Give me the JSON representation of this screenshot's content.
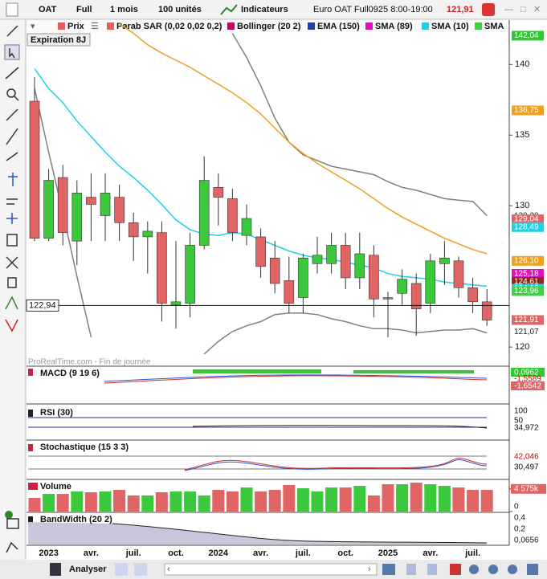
{
  "toolbar": {
    "symbol": "OAT",
    "mode": "Full",
    "period": "1 mois",
    "units": "100 unités",
    "indicators": "Indicateurs",
    "instrument": "Euro OAT Full0925 8:00-19:00",
    "last": "121,91"
  },
  "legend": [
    {
      "text": "Prix",
      "color": "#e06060"
    },
    {
      "text": "Parab SAR (0,02 0,02 0,2)",
      "color": "#e06060"
    },
    {
      "text": "Bollinger (20 2)",
      "color": "#cc0066"
    },
    {
      "text": "EMA (150)",
      "color": "#1f3fa6"
    },
    {
      "text": "SMA (89)",
      "color": "#e010c0"
    },
    {
      "text": "SMA (10)",
      "color": "#20d0e0"
    },
    {
      "text": "SMA",
      "color": "#40d040"
    }
  ],
  "expiration": "Expiration 8J",
  "watermark": "ProRealTime.com - Fin de journée",
  "chart_data": {
    "type": "candlestick",
    "categories": [
      null,
      "2023",
      null,
      null,
      "avr.",
      null,
      null,
      "juil.",
      null,
      null,
      "oct.",
      null,
      null,
      "2024",
      null,
      null,
      "avr.",
      null,
      null,
      "juil.",
      null,
      null,
      "oct.",
      null,
      null,
      "2025",
      null,
      null,
      "avr.",
      null,
      null,
      "juil.",
      null
    ],
    "open": [
      137.4,
      127.7,
      132.0,
      127.5,
      130.6,
      129.3,
      130.6,
      128.8,
      127.8,
      128.1,
      123.0,
      123.1,
      127.2,
      131.3,
      130.5,
      127.9,
      127.8,
      126.3,
      124.7,
      123.5,
      125.9,
      125.9,
      127.2,
      124.9,
      126.5,
      123.5,
      123.8,
      124.5,
      123.1,
      125.9,
      126.1,
      124.2,
      123.2
    ],
    "high": [
      139.1,
      132.6,
      132.9,
      131.8,
      132.3,
      132.3,
      131.5,
      129.5,
      128.9,
      128.9,
      127.5,
      128.1,
      133.5,
      132.3,
      131.2,
      130.1,
      128.4,
      127.5,
      126.4,
      126.6,
      127.8,
      128.1,
      128.1,
      128.1,
      127.2,
      123.9,
      125.5,
      125.2,
      126.6,
      127.5,
      126.4,
      124.9,
      124.1
    ],
    "low": [
      127.5,
      127.5,
      127.2,
      125.8,
      127.5,
      127.5,
      127.5,
      126.1,
      125.2,
      121.8,
      121.3,
      122.1,
      126.9,
      128.6,
      127.5,
      127.2,
      124.9,
      123.8,
      122.4,
      122.4,
      125.2,
      125.2,
      124.1,
      124.1,
      122.1,
      120.7,
      123.0,
      120.8,
      122.4,
      124.4,
      123.5,
      122.4,
      121.5
    ],
    "close": [
      127.7,
      131.8,
      128.1,
      130.9,
      130.1,
      130.9,
      128.8,
      127.8,
      128.2,
      123.1,
      123.2,
      127.2,
      131.8,
      130.6,
      128.1,
      129.1,
      125.7,
      124.5,
      123.1,
      126.3,
      126.5,
      127.2,
      124.9,
      126.6,
      123.4,
      123.4,
      124.8,
      122.7,
      126.1,
      126.3,
      124.2,
      123.2,
      121.91
    ],
    "up_color": "#3cc83c",
    "down_color": "#e06464",
    "ylim": [
      118.7,
      143.2
    ],
    "yticks": [
      120,
      130,
      135,
      140
    ],
    "lines": [
      {
        "color": "#808080",
        "values": [
          null,
          null,
          null,
          null,
          null,
          null,
          null,
          null,
          null,
          null,
          null,
          null,
          null,
          null,
          142.2,
          140.5,
          138.5,
          136.2,
          134.5,
          133.6,
          133.2,
          132.8,
          132.6,
          132.4,
          132.2,
          131.7,
          131.3,
          131.1,
          130.8,
          130.5,
          130.4,
          130.3,
          129.3
        ]
      },
      {
        "color": "#808080",
        "values": [
          138.3,
          133.8,
          129.5,
          125.0,
          120.7,
          null,
          null,
          null,
          null,
          null,
          null,
          null,
          119.5,
          120.4,
          121.1,
          121.5,
          121.8,
          122.3,
          122.4,
          122.4,
          122.3,
          122.0,
          121.8,
          121.5,
          121.3,
          121.3,
          121.2,
          121.0,
          121.1,
          121.2,
          121.2,
          121.3,
          121.0
        ]
      },
      {
        "color": "#20d0e0",
        "values": [
          139.7,
          138.3,
          137.3,
          136.0,
          134.9,
          133.8,
          132.8,
          132.0,
          131.1,
          130.1,
          129.0,
          128.3,
          128.0,
          127.9,
          128.1,
          128.0,
          127.6,
          127.2,
          126.8,
          126.5,
          126.3,
          126.2,
          126.0,
          125.8,
          125.6,
          125.2,
          125.0,
          124.9,
          124.8,
          124.6,
          124.5,
          124.4,
          124.3
        ]
      },
      {
        "color": "#f0a020",
        "values": [
          null,
          null,
          null,
          null,
          null,
          null,
          142.9,
          142.2,
          141.4,
          140.8,
          140.3,
          139.8,
          139.2,
          138.6,
          138.0,
          137.3,
          136.5,
          135.5,
          134.5,
          133.7,
          133.0,
          132.4,
          131.8,
          131.2,
          130.5,
          129.8,
          129.2,
          128.7,
          128.2,
          127.7,
          127.3,
          126.9,
          126.6
        ]
      }
    ],
    "crosshair": {
      "value": 122.94,
      "label": "122,94"
    },
    "price_labels": [
      {
        "value": 142.04,
        "label": "142,04",
        "color": "#30c830"
      },
      {
        "value": 136.75,
        "label": "136,75",
        "color": "#f0a020"
      },
      {
        "value": 129.28,
        "label": "129,28",
        "color": "#ffffff"
      },
      {
        "value": 129.04,
        "label": "129,04",
        "color": "#e06464"
      },
      {
        "value": 128.49,
        "label": "128,49",
        "color": "#20d0e0"
      },
      {
        "value": 126.1,
        "label": "126,10",
        "color": "#f0a020"
      },
      {
        "value": 125.18,
        "label": "125,18",
        "color": "#e010c0"
      },
      {
        "value": 124.61,
        "label": "124,61",
        "color": "#8b2a1a"
      },
      {
        "value": 124.13,
        "label": "124,13",
        "color": "#20d0e0"
      },
      {
        "value": 123.96,
        "label": "123,96",
        "color": "#40d040"
      },
      {
        "value": 121.91,
        "label": "121,91",
        "color": "#e06464"
      },
      {
        "value": 121.07,
        "label": "121,07",
        "color": "#ffffff"
      }
    ],
    "volume": {
      "title": "Volume",
      "values": [
        2750,
        3560,
        3560,
        4050,
        3890,
        4050,
        4370,
        3240,
        3240,
        3890,
        4050,
        4050,
        3240,
        4370,
        4050,
        4860,
        4050,
        4370,
        5350,
        4700,
        4050,
        4860,
        4860,
        5180,
        3240,
        5510,
        5510,
        5830,
        5510,
        5180,
        4860,
        4370,
        4370
      ],
      "ylim": [
        0,
        6000
      ],
      "yticks": [
        0,
        {
          "value": 4575,
          "label": "4 575k"
        }
      ]
    }
  },
  "panels": {
    "macd": {
      "title": "MACD (9 19 6)",
      "labels": [
        "0,0962",
        "-1,5589",
        "-1,6542"
      ]
    },
    "rsi": {
      "title": "RSI (30)",
      "labels": [
        "100",
        "50",
        "34,972"
      ]
    },
    "stoch": {
      "title": "Stochastique (15 3 3)",
      "labels": [
        "42,046",
        "30,497"
      ]
    },
    "bandwidth": {
      "title": "BandWidth (20 2)",
      "labels": [
        "0,4",
        "0,2",
        "0,0656"
      ]
    }
  },
  "bottom": {
    "analyze": "Analyser"
  }
}
